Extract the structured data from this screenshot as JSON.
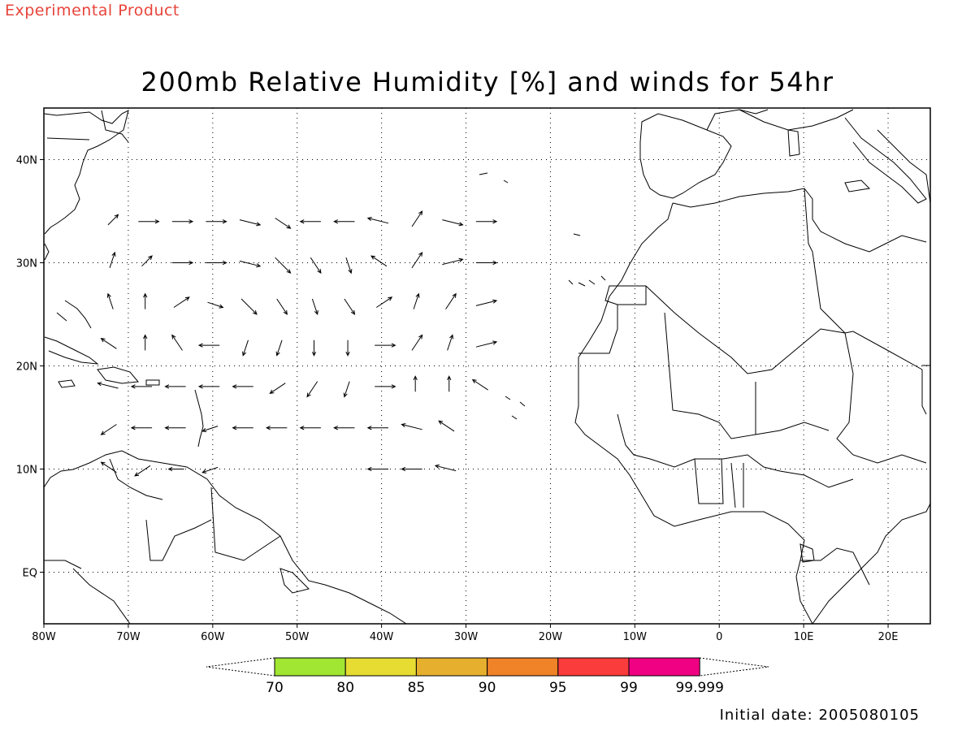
{
  "header": {
    "tag": "Experimental Product",
    "title": "200mb Relative Humidity [%] and winds for 54hr"
  },
  "map": {
    "lon_range": [
      -80,
      25
    ],
    "lat_range": [
      -5,
      45
    ],
    "lon_ticks": [
      {
        "lon": -80,
        "label": "80W"
      },
      {
        "lon": -70,
        "label": "70W"
      },
      {
        "lon": -60,
        "label": "60W"
      },
      {
        "lon": -50,
        "label": "50W"
      },
      {
        "lon": -40,
        "label": "40W"
      },
      {
        "lon": -30,
        "label": "30W"
      },
      {
        "lon": -20,
        "label": "20W"
      },
      {
        "lon": -10,
        "label": "10W"
      },
      {
        "lon": 0,
        "label": "0"
      },
      {
        "lon": 10,
        "label": "10E"
      },
      {
        "lon": 20,
        "label": "20E"
      }
    ],
    "lat_ticks": [
      {
        "lat": 40,
        "label": "40N"
      },
      {
        "lat": 30,
        "label": "30N"
      },
      {
        "lat": 20,
        "label": "20N"
      },
      {
        "lat": 10,
        "label": "10N"
      },
      {
        "lat": 0,
        "label": "EQ"
      }
    ],
    "grid": "dotted",
    "winds_u_v": [
      [
        -72,
        34,
        2,
        2
      ],
      [
        -68,
        34,
        4,
        0
      ],
      [
        -64,
        34,
        4,
        0
      ],
      [
        -60,
        34,
        4,
        0
      ],
      [
        -56,
        34,
        4,
        -1
      ],
      [
        -52,
        34,
        3,
        -2
      ],
      [
        -48,
        34,
        -4,
        0
      ],
      [
        -44,
        34,
        -4,
        0
      ],
      [
        -40,
        34,
        -4,
        1
      ],
      [
        -36,
        34,
        2,
        3
      ],
      [
        -32,
        34,
        4,
        -1
      ],
      [
        -28,
        34,
        4,
        0
      ],
      [
        -72,
        30,
        1,
        3
      ],
      [
        -68,
        30,
        2,
        2
      ],
      [
        -64,
        30,
        4,
        0
      ],
      [
        -60,
        30,
        4,
        0
      ],
      [
        -56,
        30,
        4,
        -1
      ],
      [
        -52,
        30,
        3,
        -3
      ],
      [
        -48,
        30,
        2,
        -3
      ],
      [
        -44,
        30,
        1,
        -3
      ],
      [
        -40,
        30,
        -3,
        2
      ],
      [
        -36,
        30,
        2,
        3
      ],
      [
        -32,
        30,
        4,
        1
      ],
      [
        -28,
        30,
        4,
        0
      ],
      [
        -72,
        26,
        -1,
        3
      ],
      [
        -68,
        26,
        0,
        3
      ],
      [
        -64,
        26,
        3,
        2
      ],
      [
        -60,
        26,
        3,
        -1
      ],
      [
        -56,
        26,
        3,
        -3
      ],
      [
        -52,
        26,
        2,
        -3
      ],
      [
        -48,
        26,
        1,
        -3
      ],
      [
        -44,
        26,
        2,
        -3
      ],
      [
        -40,
        26,
        3,
        2
      ],
      [
        -36,
        26,
        1,
        3
      ],
      [
        -32,
        26,
        2,
        3
      ],
      [
        -28,
        26,
        4,
        1
      ],
      [
        -72,
        22,
        -3,
        2
      ],
      [
        -68,
        22,
        0,
        3
      ],
      [
        -64,
        22,
        -2,
        3
      ],
      [
        -60,
        22,
        -4,
        0
      ],
      [
        -56,
        22,
        -1,
        -3
      ],
      [
        -52,
        22,
        -1,
        -3
      ],
      [
        -48,
        22,
        0,
        -3
      ],
      [
        -44,
        22,
        0,
        -3
      ],
      [
        -40,
        22,
        4,
        0
      ],
      [
        -36,
        22,
        2,
        3
      ],
      [
        -32,
        22,
        1,
        3
      ],
      [
        -28,
        22,
        4,
        1
      ],
      [
        -72,
        18,
        -4,
        1
      ],
      [
        -68,
        18,
        -4,
        0
      ],
      [
        -64,
        18,
        -4,
        0
      ],
      [
        -60,
        18,
        -4,
        0
      ],
      [
        -56,
        18,
        -4,
        0
      ],
      [
        -52,
        18,
        -3,
        -2
      ],
      [
        -48,
        18,
        -2,
        -3
      ],
      [
        -44,
        18,
        -1,
        -3
      ],
      [
        -40,
        18,
        4,
        0
      ],
      [
        -36,
        18,
        0,
        3
      ],
      [
        -32,
        18,
        0,
        3
      ],
      [
        -28,
        18,
        -3,
        2
      ],
      [
        -72,
        14,
        -3,
        -2
      ],
      [
        -68,
        14,
        -4,
        0
      ],
      [
        -64,
        14,
        -4,
        0
      ],
      [
        -60,
        14,
        -3,
        -1
      ],
      [
        -56,
        14,
        -4,
        0
      ],
      [
        -52,
        14,
        -4,
        0
      ],
      [
        -48,
        14,
        -4,
        0
      ],
      [
        -44,
        14,
        -4,
        0
      ],
      [
        -40,
        14,
        -4,
        0
      ],
      [
        -36,
        14,
        -4,
        1
      ],
      [
        -32,
        14,
        -3,
        2
      ],
      [
        -72,
        10,
        -3,
        2
      ],
      [
        -68,
        10,
        -3,
        -2
      ],
      [
        -64,
        10,
        -3,
        0
      ],
      [
        -60,
        10,
        -3,
        -1
      ],
      [
        -40,
        10,
        -4,
        0
      ],
      [
        -36,
        10,
        -4,
        0
      ],
      [
        -32,
        10,
        -4,
        1
      ]
    ]
  },
  "colorbar": {
    "colors": [
      "#a0e632",
      "#e6dc32",
      "#e6af2d",
      "#f08228",
      "#fa3c3c",
      "#f00082"
    ],
    "labels": [
      "70",
      "80",
      "85",
      "90",
      "95",
      "99",
      "99.999"
    ]
  },
  "footer": {
    "init_label": "Initial date: 2005080105"
  }
}
